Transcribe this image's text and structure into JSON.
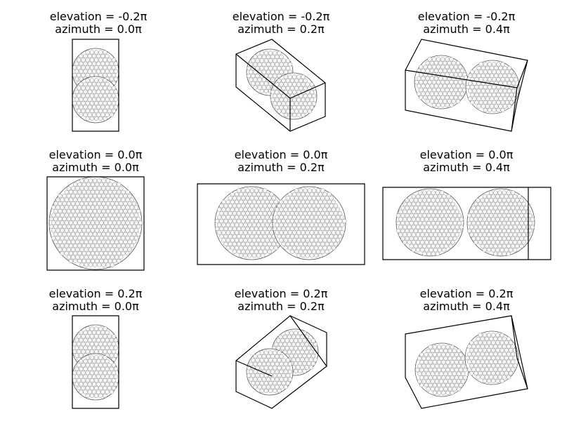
{
  "figure": {
    "panels": [
      {
        "elevation_label": "elevation = -0.2π",
        "azimuth_label": "azimuth = 0.0π",
        "elevation_pi": -0.2,
        "azimuth_pi": 0.0
      },
      {
        "elevation_label": "elevation = -0.2π",
        "azimuth_label": "azimuth = 0.2π",
        "elevation_pi": -0.2,
        "azimuth_pi": 0.2
      },
      {
        "elevation_label": "elevation = -0.2π",
        "azimuth_label": "azimuth = 0.4π",
        "elevation_pi": -0.2,
        "azimuth_pi": 0.4
      },
      {
        "elevation_label": "elevation = 0.0π",
        "azimuth_label": "azimuth = 0.0π",
        "elevation_pi": 0.0,
        "azimuth_pi": 0.0
      },
      {
        "elevation_label": "elevation = 0.0π",
        "azimuth_label": "azimuth = 0.2π",
        "elevation_pi": 0.0,
        "azimuth_pi": 0.2
      },
      {
        "elevation_label": "elevation = 0.0π",
        "azimuth_label": "azimuth = 0.4π",
        "elevation_pi": 0.0,
        "azimuth_pi": 0.4
      },
      {
        "elevation_label": "elevation = 0.2π",
        "azimuth_label": "azimuth = 0.0π",
        "elevation_pi": 0.2,
        "azimuth_pi": 0.0
      },
      {
        "elevation_label": "elevation = 0.2π",
        "azimuth_label": "azimuth = 0.2π",
        "elevation_pi": 0.2,
        "azimuth_pi": 0.2
      },
      {
        "elevation_label": "elevation = 0.2π",
        "azimuth_label": "azimuth = 0.4π",
        "elevation_pi": 0.2,
        "azimuth_pi": 0.4
      }
    ],
    "colors": {
      "background": "#ffffff",
      "box_edge": "#000000",
      "sphere_fill": "#ffffff",
      "sphere_edge": "#555555",
      "text": "#000000"
    }
  }
}
